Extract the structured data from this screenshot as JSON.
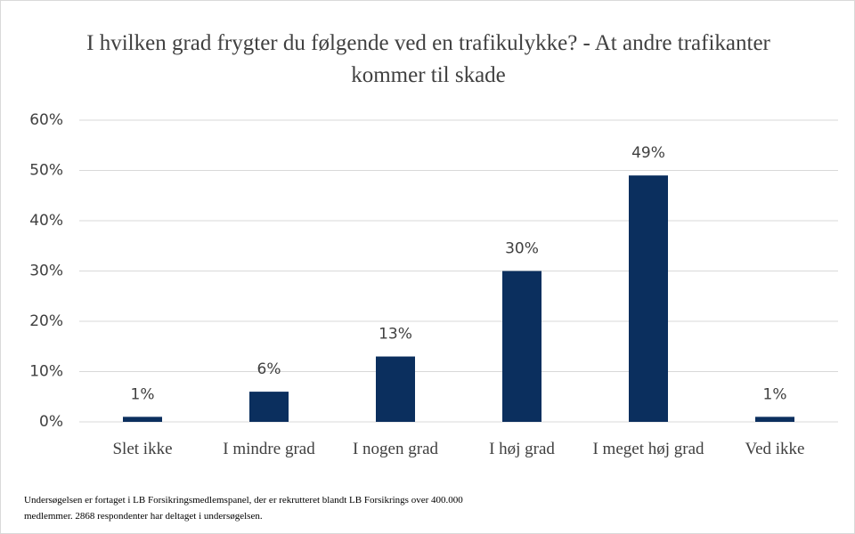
{
  "chart_data": {
    "type": "bar",
    "title": "I hvilken grad frygter du følgende ved en trafikulykke? - At andre trafikanter kommer til skade",
    "categories": [
      "Slet ikke",
      "I mindre grad",
      "I nogen grad",
      "I høj grad",
      "I meget høj grad",
      "Ved ikke"
    ],
    "values": [
      1,
      6,
      13,
      30,
      49,
      1
    ],
    "value_labels": [
      "1%",
      "6%",
      "13%",
      "30%",
      "49%",
      "1%"
    ],
    "color": "#0b2f5e",
    "ylim": [
      0,
      60
    ],
    "yticks": [
      {
        "value": 0,
        "label": "0%"
      },
      {
        "value": 10,
        "label": "10%"
      },
      {
        "value": 20,
        "label": "20%"
      },
      {
        "value": 30,
        "label": "30%"
      },
      {
        "value": 40,
        "label": "40%"
      },
      {
        "value": 50,
        "label": "50%"
      },
      {
        "value": 60,
        "label": "60%"
      }
    ],
    "grid": true,
    "footnote": "Undersøgelsen er fortaget i LB Forsikringsmedlemspanel, der er rekrutteret blandt LB Forsikrings over 400.000 medlemmer. 2868 respondenter har deltaget i undersøgelsen."
  }
}
